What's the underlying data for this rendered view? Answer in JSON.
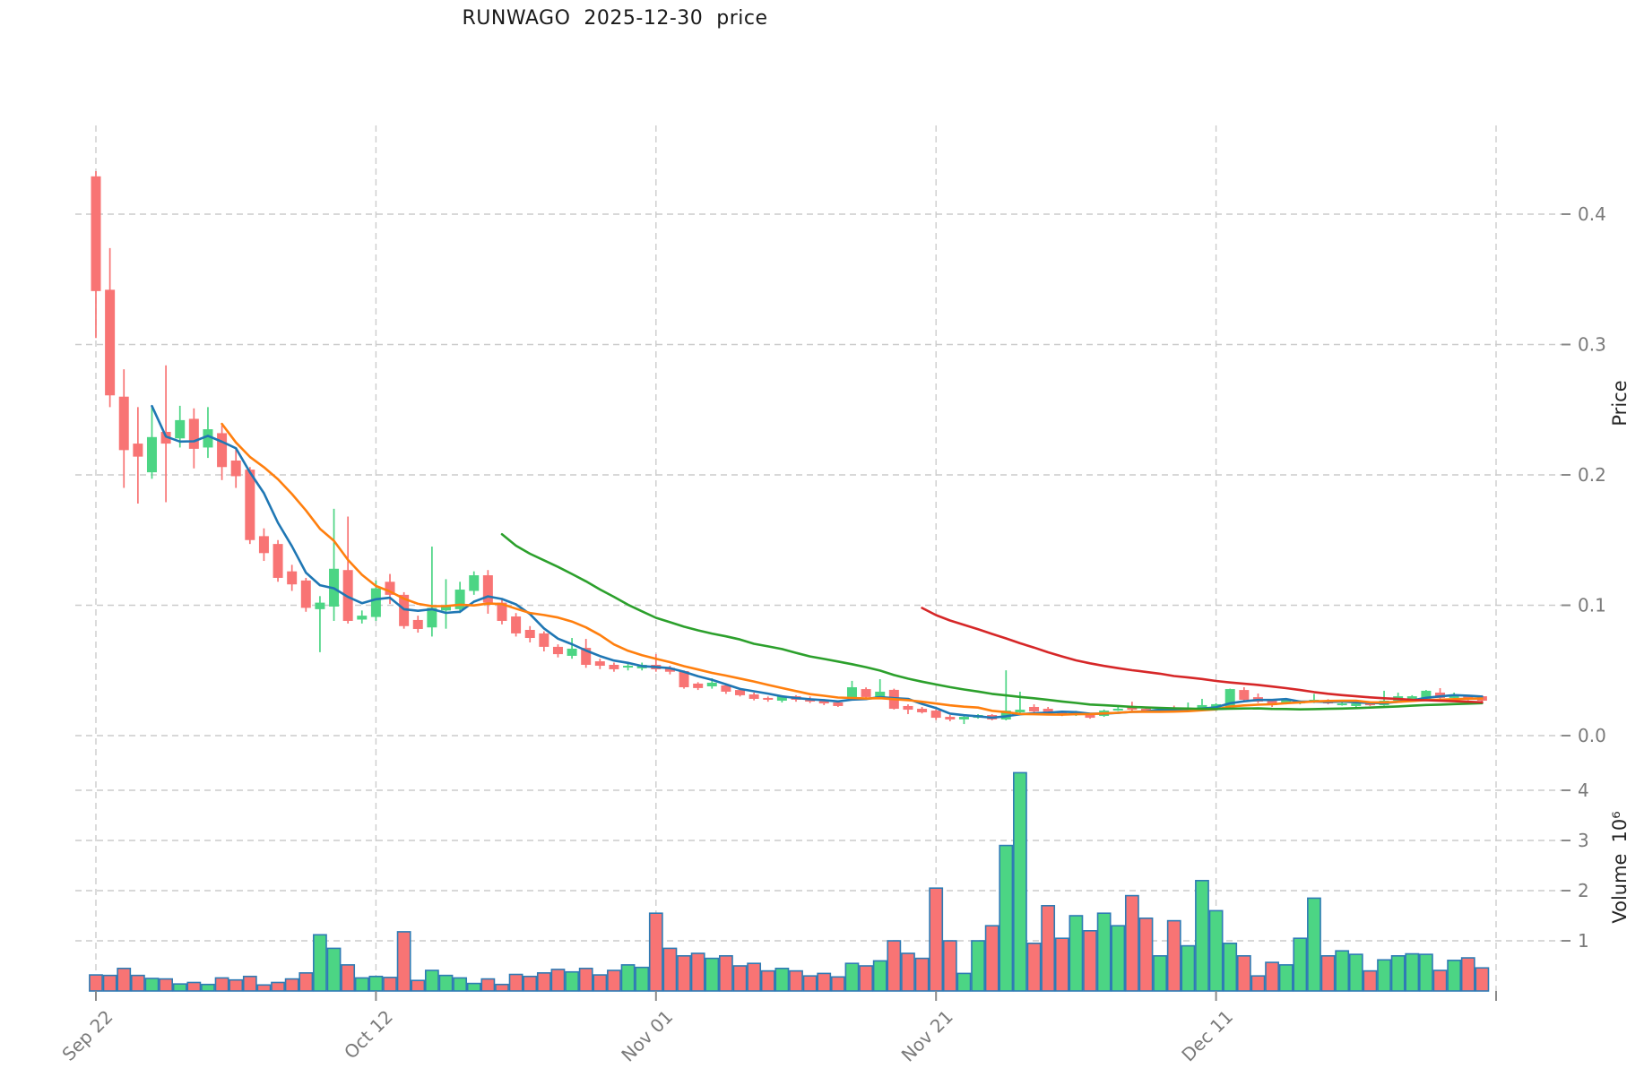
{
  "title": "RUNWAGO  2025-12-30  price",
  "chart_data": {
    "type": "candlestick",
    "symbol": "RUNWAGO",
    "as_of_date_in_title": "2025-12-30",
    "grid": true,
    "legend_position": "none",
    "x_axis": {
      "tick_days": [
        0,
        20,
        40,
        60,
        80,
        100
      ],
      "tick_labels": [
        "Sep 22",
        "Oct 12",
        "Nov 01",
        "Nov 21",
        "Dec 11",
        ""
      ]
    },
    "price_axis": {
      "label": "Price",
      "ticks": [
        0.0,
        0.1,
        0.2,
        0.3,
        0.4
      ],
      "tick_labels": [
        "0.0",
        "0.1",
        "0.2",
        "0.3",
        "0.4"
      ],
      "range": [
        -0.005,
        0.468
      ]
    },
    "volume_axis": {
      "label": "Volume",
      "unit": "10⁶",
      "ticks": [
        1,
        2,
        3,
        4
      ],
      "range": [
        0,
        4.82
      ]
    },
    "ohlc": [
      [
        0.429,
        0.433,
        0.305,
        0.341
      ],
      [
        0.342,
        0.374,
        0.252,
        0.261
      ],
      [
        0.26,
        0.281,
        0.19,
        0.219
      ],
      [
        0.224,
        0.252,
        0.178,
        0.214
      ],
      [
        0.202,
        0.252,
        0.197,
        0.229
      ],
      [
        0.233,
        0.284,
        0.179,
        0.224
      ],
      [
        0.228,
        0.253,
        0.221,
        0.242
      ],
      [
        0.243,
        0.251,
        0.205,
        0.22
      ],
      [
        0.221,
        0.252,
        0.213,
        0.235
      ],
      [
        0.232,
        0.238,
        0.196,
        0.206
      ],
      [
        0.211,
        0.22,
        0.19,
        0.199
      ],
      [
        0.204,
        0.206,
        0.147,
        0.15
      ],
      [
        0.153,
        0.159,
        0.134,
        0.14
      ],
      [
        0.147,
        0.15,
        0.118,
        0.121
      ],
      [
        0.126,
        0.131,
        0.111,
        0.116
      ],
      [
        0.119,
        0.121,
        0.095,
        0.098
      ],
      [
        0.097,
        0.107,
        0.064,
        0.102
      ],
      [
        0.099,
        0.174,
        0.088,
        0.128
      ],
      [
        0.127,
        0.168,
        0.086,
        0.088
      ],
      [
        0.089,
        0.096,
        0.086,
        0.092
      ],
      [
        0.091,
        0.119,
        0.088,
        0.113
      ],
      [
        0.118,
        0.124,
        0.101,
        0.108
      ],
      [
        0.108,
        0.11,
        0.082,
        0.084
      ],
      [
        0.0887,
        0.092,
        0.079,
        0.0818
      ],
      [
        0.083,
        0.145,
        0.076,
        0.098
      ],
      [
        0.096,
        0.12,
        0.082,
        0.099
      ],
      [
        0.097,
        0.118,
        0.094,
        0.112
      ],
      [
        0.111,
        0.126,
        0.108,
        0.123
      ],
      [
        0.123,
        0.127,
        0.0935,
        0.102
      ],
      [
        0.102,
        0.105,
        0.0853,
        0.088
      ],
      [
        0.0914,
        0.094,
        0.076,
        0.0784
      ],
      [
        0.0811,
        0.084,
        0.0715,
        0.0749
      ],
      [
        0.0784,
        0.08,
        0.0646,
        0.0681
      ],
      [
        0.0681,
        0.07,
        0.06,
        0.0625
      ],
      [
        0.0612,
        0.0749,
        0.059,
        0.0667
      ],
      [
        0.0673,
        0.0742,
        0.052,
        0.0543
      ],
      [
        0.057,
        0.059,
        0.051,
        0.0536
      ],
      [
        0.0543,
        0.056,
        0.049,
        0.0509
      ],
      [
        0.0522,
        0.0553,
        0.05,
        0.0536
      ],
      [
        0.0516,
        0.056,
        0.05,
        0.0543
      ],
      [
        0.0543,
        0.0625,
        0.049,
        0.0509
      ],
      [
        0.052,
        0.0536,
        0.047,
        0.049
      ],
      [
        0.0495,
        0.05,
        0.036,
        0.0371
      ],
      [
        0.0399,
        0.041,
        0.035,
        0.0365
      ],
      [
        0.0378,
        0.044,
        0.036,
        0.0406
      ],
      [
        0.0385,
        0.04,
        0.032,
        0.0337
      ],
      [
        0.035,
        0.036,
        0.03,
        0.031
      ],
      [
        0.0316,
        0.033,
        0.027,
        0.0282
      ],
      [
        0.0289,
        0.03,
        0.026,
        0.0275
      ],
      [
        0.0268,
        0.031,
        0.0254,
        0.0302
      ],
      [
        0.0302,
        0.031,
        0.026,
        0.0275
      ],
      [
        0.0282,
        0.03,
        0.025,
        0.0261
      ],
      [
        0.0268,
        0.028,
        0.0234,
        0.0247
      ],
      [
        0.0254,
        0.026,
        0.022,
        0.0227
      ],
      [
        0.0289,
        0.042,
        0.027,
        0.0371
      ],
      [
        0.0357,
        0.037,
        0.028,
        0.0296
      ],
      [
        0.0289,
        0.0433,
        0.028,
        0.0337
      ],
      [
        0.0351,
        0.036,
        0.02,
        0.0206
      ],
      [
        0.0227,
        0.024,
        0.0165,
        0.0199
      ],
      [
        0.0206,
        0.022,
        0.017,
        0.0179
      ],
      [
        0.0192,
        0.02,
        0.012,
        0.0137
      ],
      [
        0.0144,
        0.0158,
        0.011,
        0.0124
      ],
      [
        0.0124,
        0.0151,
        0.0089,
        0.0144
      ],
      [
        0.0137,
        0.0165,
        0.013,
        0.0158
      ],
      [
        0.0158,
        0.0165,
        0.0117,
        0.0124
      ],
      [
        0.0124,
        0.0501,
        0.0117,
        0.0192
      ],
      [
        0.0179,
        0.0337,
        0.017,
        0.0199
      ],
      [
        0.022,
        0.024,
        0.017,
        0.0186
      ],
      [
        0.0206,
        0.022,
        0.0165,
        0.0179
      ],
      [
        0.0182,
        0.019,
        0.015,
        0.0162
      ],
      [
        0.0158,
        0.019,
        0.0151,
        0.0175
      ],
      [
        0.0165,
        0.017,
        0.013,
        0.0137
      ],
      [
        0.0151,
        0.02,
        0.0144,
        0.0192
      ],
      [
        0.0199,
        0.022,
        0.019,
        0.0206
      ],
      [
        0.0227,
        0.026,
        0.019,
        0.0199
      ],
      [
        0.0206,
        0.022,
        0.018,
        0.0192
      ],
      [
        0.0192,
        0.021,
        0.0185,
        0.0203
      ],
      [
        0.0213,
        0.023,
        0.019,
        0.0199
      ],
      [
        0.0199,
        0.0254,
        0.019,
        0.021
      ],
      [
        0.0206,
        0.0282,
        0.02,
        0.0234
      ],
      [
        0.0213,
        0.025,
        0.021,
        0.0241
      ],
      [
        0.022,
        0.036,
        0.0213,
        0.0357
      ],
      [
        0.035,
        0.0371,
        0.026,
        0.0275
      ],
      [
        0.0295,
        0.0323,
        0.025,
        0.0261
      ],
      [
        0.0268,
        0.028,
        0.022,
        0.0234
      ],
      [
        0.0254,
        0.028,
        0.024,
        0.0275
      ],
      [
        0.0247,
        0.027,
        0.024,
        0.0261
      ],
      [
        0.0254,
        0.032,
        0.025,
        0.0275
      ],
      [
        0.0268,
        0.028,
        0.024,
        0.0247
      ],
      [
        0.0234,
        0.026,
        0.023,
        0.0247
      ],
      [
        0.0227,
        0.0261,
        0.022,
        0.0247
      ],
      [
        0.0247,
        0.026,
        0.0227,
        0.0234
      ],
      [
        0.0234,
        0.0344,
        0.023,
        0.0268
      ],
      [
        0.0268,
        0.033,
        0.026,
        0.0302
      ],
      [
        0.0282,
        0.031,
        0.027,
        0.0302
      ],
      [
        0.0282,
        0.035,
        0.028,
        0.0344
      ],
      [
        0.033,
        0.0364,
        0.028,
        0.0289
      ],
      [
        0.0289,
        0.033,
        0.028,
        0.0316
      ],
      [
        0.0302,
        0.031,
        0.027,
        0.0282
      ],
      [
        0.0302,
        0.031,
        0.026,
        0.0268
      ]
    ],
    "volume_millions": [
      0.32,
      0.31,
      0.45,
      0.31,
      0.25,
      0.24,
      0.14,
      0.17,
      0.13,
      0.26,
      0.22,
      0.29,
      0.12,
      0.17,
      0.24,
      0.36,
      1.12,
      0.85,
      0.52,
      0.26,
      0.29,
      0.27,
      1.18,
      0.21,
      0.41,
      0.31,
      0.26,
      0.15,
      0.24,
      0.13,
      0.33,
      0.29,
      0.36,
      0.43,
      0.38,
      0.45,
      0.32,
      0.41,
      0.52,
      0.47,
      1.55,
      0.85,
      0.7,
      0.75,
      0.65,
      0.7,
      0.5,
      0.55,
      0.4,
      0.45,
      0.4,
      0.3,
      0.35,
      0.28,
      0.55,
      0.5,
      0.6,
      1.0,
      0.75,
      0.65,
      2.05,
      1.0,
      0.35,
      1.0,
      1.3,
      2.9,
      4.35,
      0.95,
      1.7,
      1.05,
      1.5,
      1.2,
      1.55,
      1.3,
      1.9,
      1.45,
      0.7,
      1.4,
      0.9,
      2.2,
      1.6,
      0.95,
      0.7,
      0.3,
      0.57,
      0.52,
      1.05,
      1.85,
      0.7,
      0.8,
      0.73,
      0.4,
      0.62,
      0.7,
      0.74,
      0.73,
      0.41,
      0.61,
      0.66,
      0.46
    ],
    "moving_averages": [
      {
        "window": 5,
        "color": "#1f77b4"
      },
      {
        "window": 10,
        "color": "#ff7f0e"
      },
      {
        "window": 30,
        "color": "#2ca02c"
      },
      {
        "window": 60,
        "color": "#d62728"
      }
    ]
  },
  "colors": {
    "up": "#4cd584",
    "down": "#f87474",
    "volume_bar_edge": "#2e7bb5",
    "grid": "#cccccc",
    "tick_text": "#7a7a7a",
    "axis_label_text": "#262626",
    "tick_mark": "#8a8a8a",
    "background": "#ffffff"
  }
}
